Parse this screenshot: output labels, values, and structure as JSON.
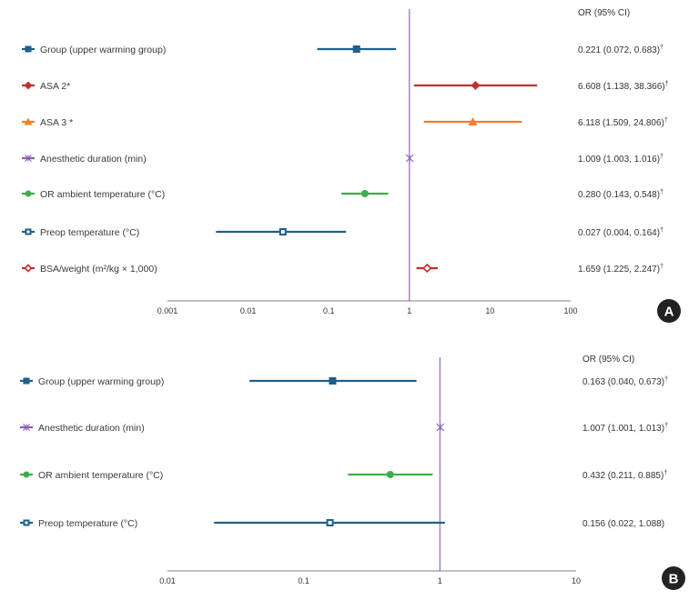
{
  "chart_data": [
    {
      "type": "forest",
      "panel": "A",
      "header": "OR (95% CI)",
      "scale": "log10",
      "xlim": [
        0.001,
        100
      ],
      "reference_line": 1,
      "ticks": [
        {
          "value": 0.001,
          "label": "0.001"
        },
        {
          "value": 0.01,
          "label": "0.01"
        },
        {
          "value": 0.1,
          "label": "0.1"
        },
        {
          "value": 1,
          "label": "1"
        },
        {
          "value": 10,
          "label": "10"
        },
        {
          "value": 100,
          "label": "100"
        }
      ],
      "rows": [
        {
          "label": "Group (upper warming group)",
          "or": 0.221,
          "lo": 0.072,
          "hi": 0.683,
          "text": "0.221 (0.072, 0.683)",
          "sig": "†",
          "color": "#1f5f8b",
          "marker": "square"
        },
        {
          "label": "ASA 2*",
          "or": 6.608,
          "lo": 1.138,
          "hi": 38.366,
          "text": "6.608 (1.138, 38.366)",
          "sig": "†",
          "color": "#c0302f",
          "marker": "diamond"
        },
        {
          "label": "ASA 3 *",
          "or": 6.118,
          "lo": 1.509,
          "hi": 24.806,
          "text": "6.118 (1.509, 24.806)",
          "sig": "†",
          "color": "#ef7f2d",
          "marker": "triangle"
        },
        {
          "label": "Anesthetic duration (min)",
          "or": 1.009,
          "lo": 1.003,
          "hi": 1.016,
          "text": "1.009 (1.003, 1.016)",
          "sig": "†",
          "color": "#8d5db3",
          "marker": "star"
        },
        {
          "label": "OR ambient temperature (°C)",
          "or": 0.28,
          "lo": 0.143,
          "hi": 0.548,
          "text": "0.280 (0.143, 0.548)",
          "sig": "†",
          "color": "#3fae49",
          "marker": "circle"
        },
        {
          "label": "Preop temperature (°C)",
          "or": 0.027,
          "lo": 0.004,
          "hi": 0.164,
          "text": "0.027 (0.004, 0.164)",
          "sig": "†",
          "color": "#1f5f8b",
          "marker": "square-open"
        },
        {
          "label": "BSA/weight (m²/kg × 1,000)",
          "or": 1.659,
          "lo": 1.225,
          "hi": 2.247,
          "text": "1.659 (1.225, 2.247)",
          "sig": "†",
          "color": "#c0302f",
          "marker": "diamond-open"
        }
      ]
    },
    {
      "type": "forest",
      "panel": "B",
      "header": "OR (95% CI)",
      "scale": "log10",
      "xlim": [
        0.01,
        10
      ],
      "reference_line": 1,
      "ticks": [
        {
          "value": 0.01,
          "label": "0.01"
        },
        {
          "value": 0.1,
          "label": "0.1"
        },
        {
          "value": 1,
          "label": "1"
        },
        {
          "value": 10,
          "label": "10"
        }
      ],
      "rows": [
        {
          "label": "Group (upper warming group)",
          "or": 0.163,
          "lo": 0.04,
          "hi": 0.673,
          "text": "0.163 (0.040, 0.673)",
          "sig": "†",
          "color": "#1f5f8b",
          "marker": "square"
        },
        {
          "label": "Anesthetic duration (min)",
          "or": 1.007,
          "lo": 1.001,
          "hi": 1.013,
          "text": "1.007 (1.001, 1.013)",
          "sig": "†",
          "color": "#8d5db3",
          "marker": "star"
        },
        {
          "label": "OR ambient temperature (°C)",
          "or": 0.432,
          "lo": 0.211,
          "hi": 0.885,
          "text": "0.432 (0.211, 0.885)",
          "sig": "†",
          "color": "#3fae49",
          "marker": "circle"
        },
        {
          "label": "Preop temperature (°C)",
          "or": 0.156,
          "lo": 0.022,
          "hi": 1.088,
          "text": "0.156 (0.022, 1.088)",
          "sig": "",
          "color": "#1f5f8b",
          "marker": "square-open"
        }
      ]
    }
  ],
  "colors": {
    "reference_line": "#8d5db3",
    "axis": "#555555",
    "badge": "#222222"
  }
}
